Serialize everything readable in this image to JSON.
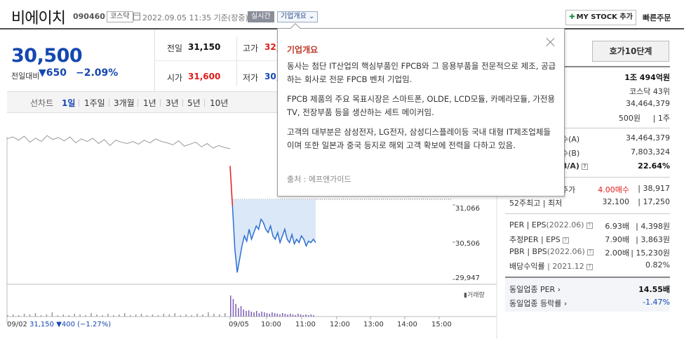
{
  "header": {
    "company_name": "비에이치",
    "stock_code": "090460",
    "market": "코스닥",
    "datetime": "2022.09.05 11:35 기준(장중)",
    "realtime_badge": "실시간",
    "company_overview_button": "기업개요",
    "mystock_button": "MY STOCK 추가",
    "quick_order_button": "빠른주문"
  },
  "price": {
    "current": "30,500",
    "vs_prev_label": "전일대비",
    "change": "650",
    "change_rate": "−2.09%",
    "direction": "down",
    "color_down": "#1547b0"
  },
  "stats": {
    "prev_close_label": "전일",
    "prev_close": "31,150",
    "high_label": "고가",
    "high": "32,",
    "open_label": "시가",
    "open": "31,600",
    "low_label": "저가",
    "low": "30,"
  },
  "period_tabs": {
    "line_chart": "선차트",
    "tabs": [
      "1일",
      "1주일",
      "3개월",
      "1년",
      "3년",
      "5년",
      "10년"
    ],
    "active": "1일"
  },
  "chart_data": {
    "type": "line",
    "title": "",
    "y_ticks": [
      "31,066",
      "30,506",
      "29,947"
    ],
    "x_ticks": [
      "09/02",
      "09/05",
      "10:00",
      "11:00",
      "12:00",
      "13:00",
      "14:00",
      "15:00"
    ],
    "ylim": [
      29947,
      31066
    ],
    "prev_close": 31150,
    "volume_label": "거래량",
    "prev_day_info": {
      "date": "09/02",
      "close": "31,150",
      "change": "▼400",
      "rate": "(−1.27%)"
    },
    "series": [
      {
        "name": "09/02",
        "note": "previous day (grey)",
        "values": [
          31300,
          31330,
          31280,
          31340,
          31250,
          31310,
          31260,
          31350,
          31290,
          31320,
          31270,
          31330,
          31240,
          31300,
          31260,
          31310,
          31230,
          31290,
          31200,
          31280,
          31250,
          31230,
          31260,
          31220,
          31280,
          31240,
          31300,
          31260,
          31240,
          31210,
          31270,
          31190,
          31220,
          31250,
          31180,
          31230,
          31160,
          31200,
          31170,
          31150
        ]
      },
      {
        "name": "09/05",
        "note": "today (blue)",
        "values": [
          31600,
          31050,
          30400,
          30050,
          30250,
          30450,
          30600,
          30520,
          30700,
          30550,
          30650,
          30750,
          30700,
          30850,
          30800,
          30700,
          30650,
          30750,
          30600,
          30550,
          30650,
          30500,
          30600,
          30700,
          30550,
          30500,
          30620,
          30480,
          30550,
          30500,
          30600,
          30550,
          30450,
          30520,
          30500,
          30550,
          30500
        ]
      }
    ],
    "volume": [
      2,
      3,
      2,
      4,
      3,
      5,
      2,
      3,
      6,
      2,
      3,
      2,
      4,
      3,
      2,
      5,
      3,
      2,
      4,
      2,
      3,
      5,
      2,
      3,
      4,
      2,
      3,
      2,
      4,
      3,
      5,
      2,
      3,
      2,
      4,
      3,
      6,
      4,
      3,
      5,
      30,
      25,
      18,
      12,
      15,
      10,
      8,
      9,
      7,
      6,
      8,
      5,
      7,
      6,
      5,
      4,
      6,
      5,
      4,
      3,
      5,
      4,
      3,
      4,
      3,
      2,
      4,
      3,
      2,
      3,
      2,
      3,
      2
    ]
  },
  "popup": {
    "title": "기업개요",
    "paragraphs": [
      "동사는 첨단 IT산업의 핵심부품인 FPCB와 그 응용부품을 전문적으로 제조, 공급하는 회사로 전문 FPCB 벤처 기업임.",
      "FPCB 제품의 주요 목표시장은 스마트폰, OLDE, LCD모듈, 카메라모듈, 가전용TV, 전장부품 등을 생산하는 세트 메이커임.",
      "고객의 대부분은 삼성전자, LG전자, 삼성디스플레이등 국내 대형 IT제조업체들이며 또한 일본과 중국 등지로 해외 고객 확보에 전력을 다하고 있음."
    ],
    "source": "출처 : 에프앤가이드"
  },
  "right_panel": {
    "hoga_tab": "호가10단계",
    "market_cap": "1조 494억원",
    "market_rank": "코스닥 43위",
    "shares_total": "34,464,379",
    "par_value": "500원",
    "par_unit": "1주",
    "shares_a_label": "수(A)",
    "shares_a": "34,464,379",
    "shares_b_label": "수(B)",
    "shares_b": "7,803,324",
    "foreign_ratio_label": "B/A)",
    "foreign_ratio": "22.64%",
    "target_label": "주가",
    "target_opinion": "4.00매수",
    "target_price": "38,917",
    "week52_label": "52주최고 | 최저",
    "week52_high": "32,100",
    "week52_low": "17,250",
    "per_eps_label": "PER | EPS",
    "per_eps_date": "(2022.06)",
    "per": "6.93배",
    "eps": "4,398원",
    "est_label": "추정PER | EPS",
    "est_per": "7.90배",
    "est_eps": "3,863원",
    "pbr_bps_label": "PBR | BPS",
    "pbr_bps_date": "(2022.06)",
    "pbr": "2.00배",
    "bps": "15,230원",
    "dividend_label": "배당수익률",
    "dividend_date": "2021.12",
    "dividend": "0.82%",
    "industry_per_label": "동일업종 PER",
    "industry_per": "14.55배",
    "industry_rate_label": "동일업종 등락률",
    "industry_rate": "-1.47%"
  }
}
